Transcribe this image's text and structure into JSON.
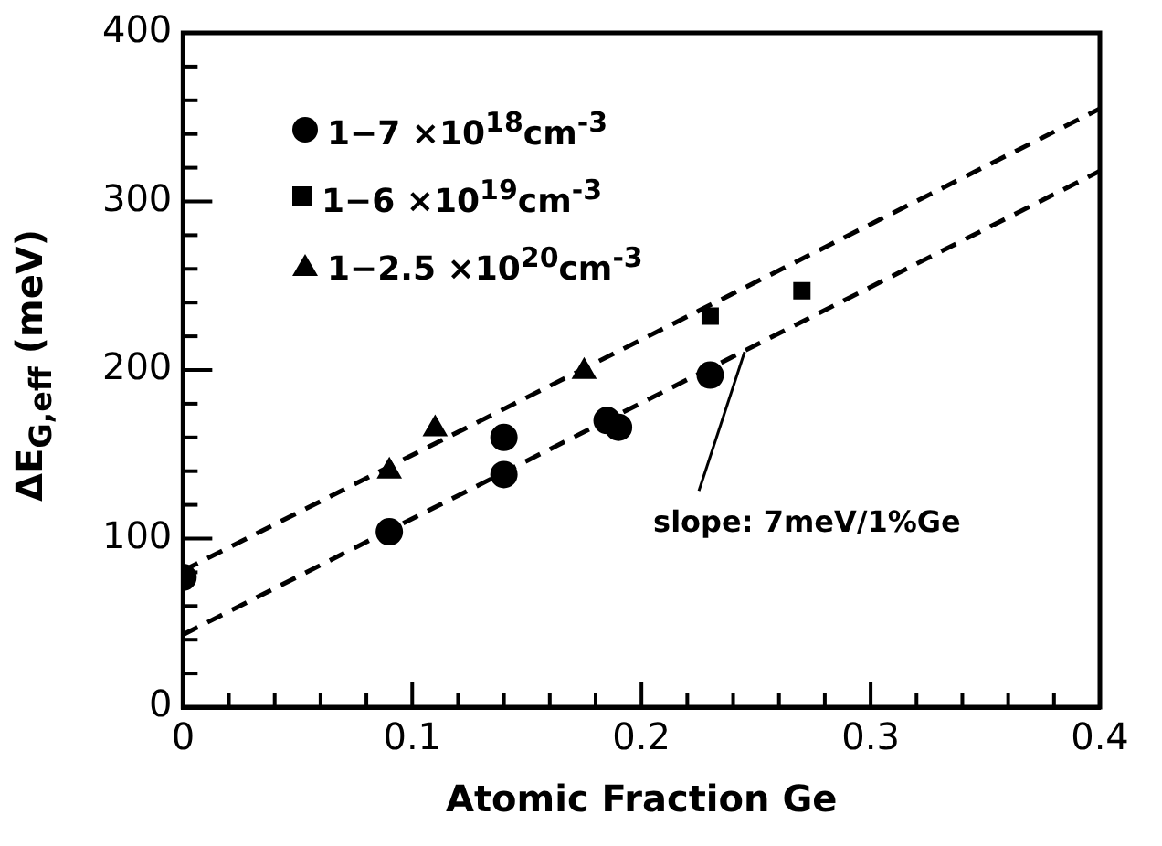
{
  "chart_data": {
    "type": "scatter",
    "xlabel": "Atomic Fraction Ge",
    "ylabel": "ΔE$_{G,eff}$ (meV)",
    "xlim": [
      0,
      0.4
    ],
    "xticks": [
      0,
      {
        "value": 0.02,
        "label": null
      },
      {
        "value": 0.04,
        "label": null
      },
      {
        "value": 0.06,
        "label": null
      },
      {
        "value": 0.08,
        "label": null
      },
      0.1,
      {
        "value": 0.12,
        "label": null
      },
      {
        "value": 0.14,
        "label": null
      },
      {
        "value": 0.16,
        "label": null
      },
      {
        "value": 0.18,
        "label": null
      },
      0.2,
      {
        "value": 0.22,
        "label": null
      },
      {
        "value": 0.24,
        "label": null
      },
      {
        "value": 0.26,
        "label": null
      },
      {
        "value": 0.28,
        "label": null
      },
      0.3,
      {
        "value": 0.32,
        "label": null
      },
      {
        "value": 0.34,
        "label": null
      },
      {
        "value": 0.36,
        "label": null
      },
      {
        "value": 0.38,
        "label": null
      },
      0.4
    ],
    "ylim": [
      0,
      400
    ],
    "yticks": [
      0,
      {
        "value": 20,
        "label": null
      },
      {
        "value": 40,
        "label": null
      },
      {
        "value": 60,
        "label": null
      },
      {
        "value": 80,
        "label": null
      },
      100,
      {
        "value": 120,
        "label": null
      },
      {
        "value": 140,
        "label": null
      },
      {
        "value": 160,
        "label": null
      },
      {
        "value": 180,
        "label": null
      },
      200,
      {
        "value": 220,
        "label": null
      },
      {
        "value": 240,
        "label": null
      },
      {
        "value": 260,
        "label": null
      },
      {
        "value": 280,
        "label": null
      },
      300,
      {
        "value": 320,
        "label": null
      },
      {
        "value": 340,
        "label": null
      },
      {
        "value": 360,
        "label": null
      },
      {
        "value": 380,
        "label": null
      },
      400
    ],
    "grid": false,
    "legend": "top left",
    "annotations": [
      {
        "text": "slope: 7meV/1%Ge",
        "x": 0.245,
        "y": 215
      }
    ],
    "series": [
      {
        "name": "1−7 ×10$^{18}$cm$^{-3}$",
        "color": "#000000",
        "marker": "circle",
        "x": [
          0,
          0.09,
          0.14,
          0.14,
          0.185,
          0.19,
          0.23
        ],
        "values": [
          77,
          104,
          138,
          160,
          170,
          166,
          197
        ]
      },
      {
        "name": "1−6 ×10$^{19}$cm$^{-3}$",
        "color": "#000000",
        "marker": "square",
        "x": [
          0.23,
          0.27
        ],
        "values": [
          232,
          247
        ]
      },
      {
        "name": "1−2.5 ×10$^{20}$cm$^{-3}$",
        "color": "#000000",
        "marker": "triangle",
        "x": [
          0.09,
          0.11,
          0.175
        ],
        "values": [
          140,
          165,
          199
        ]
      },
      {
        "type": "line",
        "color": "#000000",
        "line_style": "dashed",
        "marker": "none",
        "x": [
          0,
          0.4
        ],
        "values": [
          81,
          355
        ]
      },
      {
        "type": "line",
        "color": "#000000",
        "line_style": "dashed",
        "marker": "none",
        "x": [
          0,
          0.4
        ],
        "values": [
          43,
          318
        ]
      }
    ]
  }
}
